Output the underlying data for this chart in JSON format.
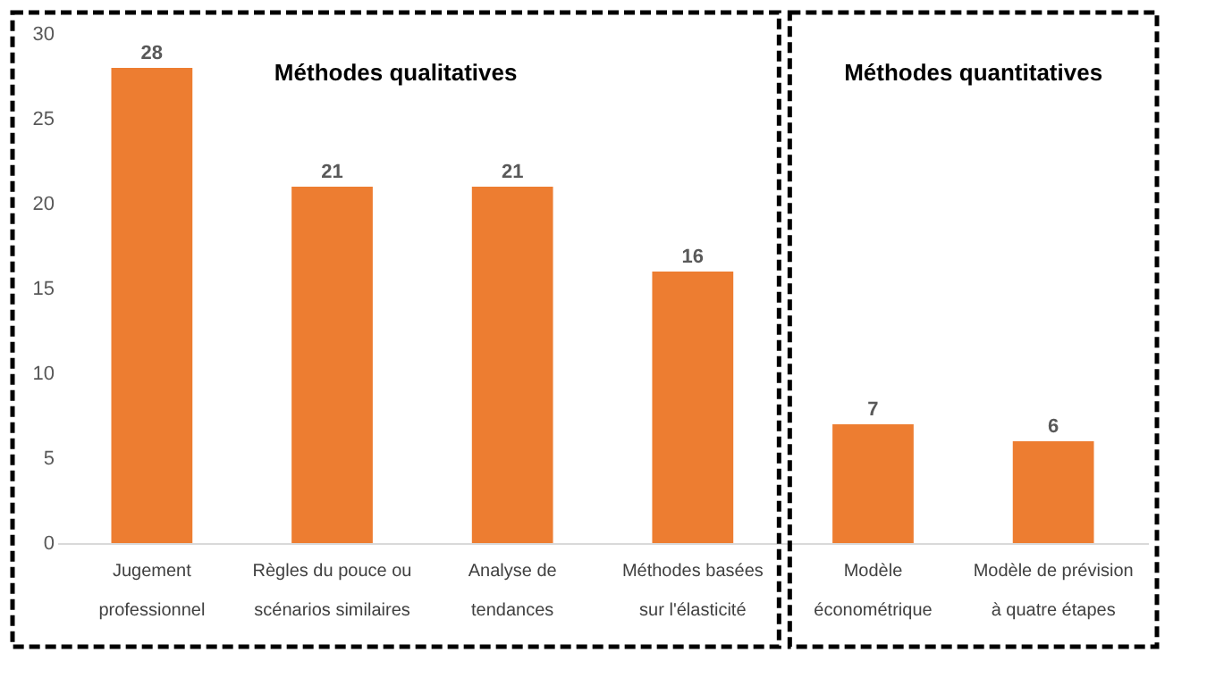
{
  "chart_data": {
    "type": "bar",
    "categories": [
      "Jugement professionnel",
      "Règles du pouce ou scénarios similaires",
      "Analyse de tendances",
      "Méthodes basées sur l'élasticité",
      "Modèle économétrique",
      "Modèle de prévision à quatre étapes"
    ],
    "values": [
      28,
      21,
      21,
      16,
      7,
      6
    ],
    "color": "#ed7d31",
    "ylim": [
      0,
      30
    ],
    "yticks": [
      0,
      5,
      10,
      15,
      20,
      25,
      30
    ],
    "grid": false,
    "data_labels": true,
    "annotations": [
      "Méthodes qualitatives",
      "Méthodes quantitatives"
    ]
  }
}
